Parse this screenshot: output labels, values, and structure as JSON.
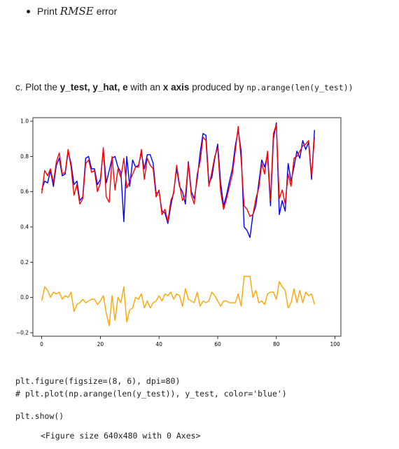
{
  "bullet": {
    "prefix": "Print",
    "math": "RMSE",
    "suffix": "error"
  },
  "heading": {
    "part1": "c. Plot the ",
    "bold1": "y_test, y_hat, e",
    "part2": " with an ",
    "bold2": "x axis",
    "part3": " produced by ",
    "code": "np.arange(len(y_test))"
  },
  "code_lines": [
    "plt.figure(figsize=(8, 6), dpi=80)",
    "# plt.plot(np.arange(len(y_test)), y_test, color='blue')",
    "plt.show()"
  ],
  "output_text": "<Figure size 640x480 with 0 Axes>",
  "chart_data": {
    "type": "line",
    "xlim": [
      -3,
      102
    ],
    "ylim": [
      -0.22,
      1.02
    ],
    "xticks": [
      0,
      20,
      40,
      60,
      80,
      100
    ],
    "yticks": [
      -0.2,
      0.0,
      0.2,
      0.4,
      0.6,
      0.8,
      1.0
    ],
    "xtick_labels": [
      "0",
      "20",
      "40",
      "60",
      "80",
      "100"
    ],
    "ytick_labels": [
      "−0.2",
      "0.0",
      "0.2",
      "0.4",
      "0.6",
      "0.8",
      "1.0"
    ],
    "grid": false,
    "series": [
      {
        "color": "#0000ff",
        "values": [
          0.61,
          0.66,
          0.65,
          0.72,
          0.63,
          0.75,
          0.79,
          0.69,
          0.7,
          0.83,
          0.76,
          0.64,
          0.66,
          0.55,
          0.57,
          0.79,
          0.8,
          0.73,
          0.73,
          0.64,
          0.67,
          0.84,
          0.65,
          0.72,
          0.79,
          0.8,
          0.74,
          0.71,
          0.43,
          0.8,
          0.63,
          0.78,
          0.74,
          0.75,
          0.82,
          0.73,
          0.81,
          0.81,
          0.76,
          0.59,
          0.6,
          0.49,
          0.48,
          0.42,
          0.52,
          0.6,
          0.73,
          0.63,
          0.6,
          0.53,
          0.77,
          0.6,
          0.56,
          0.67,
          0.82,
          0.93,
          0.92,
          0.65,
          0.68,
          0.79,
          0.87,
          0.65,
          0.52,
          0.58,
          0.66,
          0.73,
          0.86,
          0.95,
          0.83,
          0.4,
          0.38,
          0.34,
          0.47,
          0.52,
          0.65,
          0.78,
          0.74,
          0.81,
          0.52,
          0.9,
          0.99,
          0.47,
          0.55,
          0.49,
          0.76,
          0.66,
          0.74,
          0.83,
          0.79,
          0.89,
          0.84,
          0.88,
          0.67,
          0.95
        ]
      },
      {
        "color": "#ff0000",
        "values": [
          0.59,
          0.72,
          0.69,
          0.73,
          0.65,
          0.77,
          0.82,
          0.7,
          0.71,
          0.84,
          0.74,
          0.58,
          0.64,
          0.53,
          0.56,
          0.76,
          0.78,
          0.71,
          0.72,
          0.6,
          0.65,
          0.85,
          0.57,
          0.54,
          0.8,
          0.61,
          0.73,
          0.68,
          0.79,
          0.62,
          0.66,
          0.7,
          0.74,
          0.74,
          0.84,
          0.67,
          0.79,
          0.75,
          0.73,
          0.57,
          0.61,
          0.47,
          0.5,
          0.43,
          0.55,
          0.59,
          0.75,
          0.64,
          0.55,
          0.58,
          0.76,
          0.58,
          0.53,
          0.7,
          0.77,
          0.91,
          0.89,
          0.63,
          0.71,
          0.8,
          0.85,
          0.6,
          0.5,
          0.56,
          0.63,
          0.7,
          0.83,
          0.97,
          0.78,
          0.52,
          0.5,
          0.46,
          0.47,
          0.56,
          0.62,
          0.76,
          0.7,
          0.83,
          0.55,
          0.93,
          0.98,
          0.56,
          0.61,
          0.53,
          0.7,
          0.63,
          0.79,
          0.8,
          0.83,
          0.86,
          0.87,
          0.89,
          0.69,
          0.91
        ]
      },
      {
        "color": "#ffa500",
        "values": [
          -0.02,
          0.06,
          0.04,
          0.0,
          0.03,
          0.02,
          0.03,
          -0.01,
          0.01,
          0.0,
          0.03,
          -0.08,
          -0.04,
          -0.03,
          -0.01,
          -0.03,
          -0.02,
          -0.01,
          -0.01,
          -0.04,
          -0.02,
          0.01,
          -0.09,
          -0.16,
          0.01,
          -0.13,
          0.0,
          -0.03,
          0.06,
          -0.14,
          -0.07,
          -0.06,
          0.0,
          -0.01,
          0.02,
          -0.06,
          -0.02,
          -0.06,
          -0.03,
          -0.02,
          0.01,
          -0.02,
          0.02,
          0.01,
          0.03,
          -0.01,
          0.02,
          0.01,
          -0.05,
          0.05,
          -0.01,
          -0.02,
          -0.03,
          0.03,
          -0.05,
          -0.02,
          -0.03,
          -0.02,
          0.03,
          0.01,
          -0.02,
          -0.05,
          -0.02,
          -0.02,
          -0.03,
          -0.03,
          -0.03,
          0.02,
          -0.05,
          0.12,
          0.12,
          0.12,
          0.0,
          0.04,
          -0.03,
          -0.02,
          -0.04,
          0.02,
          0.03,
          0.03,
          -0.01,
          0.09,
          0.06,
          0.04,
          -0.06,
          -0.03,
          0.05,
          -0.03,
          0.04,
          -0.03,
          0.03,
          0.01,
          0.02,
          -0.04
        ]
      }
    ]
  }
}
